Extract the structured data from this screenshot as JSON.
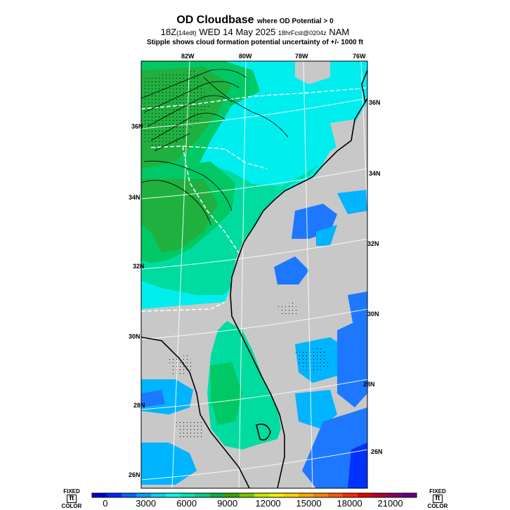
{
  "title": {
    "main": "OD Cloudbase",
    "main_sub": "where OD Potential > 0",
    "run": "18Z",
    "run_local": "(14edt)",
    "date": "WED 14 May 2025",
    "forecast": "18hrFcst@0204z",
    "model": "NAM",
    "stipple_note": "Stipple shows cloud formation potential uncertainty of +/- 1000 ft"
  },
  "map": {
    "lon_labels": [
      "82W",
      "80W",
      "78W",
      "76W"
    ],
    "lat_labels_left": [
      "36N",
      "34N",
      "32N",
      "30N",
      "28N",
      "26N"
    ],
    "lat_labels_right": [
      "36N",
      "34N",
      "32N",
      "30N",
      "28N",
      "26N"
    ],
    "colors": {
      "no_data": "#c8c8c8",
      "cyan": "#00eeee",
      "teal": "#00dca0",
      "green_light": "#00c864",
      "green_mid": "#20b040",
      "green_dark": "#32a028",
      "blue_light": "#00b4ff",
      "blue_mid": "#1e78ff",
      "blue_dark": "#0032ff"
    }
  },
  "colorbar": {
    "left_label": [
      "FIXED",
      "ft",
      "COLOR"
    ],
    "right_label": [
      "FIXED",
      "ft",
      "COLOR"
    ],
    "ticks": [
      "0",
      "3000",
      "6000",
      "9000",
      "12000",
      "15000",
      "18000",
      "21000"
    ],
    "colors": [
      "#0000c8",
      "#0028ff",
      "#0064ff",
      "#00a0ff",
      "#00d2ff",
      "#00ffe6",
      "#00e6b4",
      "#00d27d",
      "#00b43c",
      "#32aa00",
      "#78c800",
      "#c8e600",
      "#f0f000",
      "#ffd200",
      "#ffaa00",
      "#ff8200",
      "#ff5a00",
      "#ff2800",
      "#e60000",
      "#b40032",
      "#8c0064",
      "#64008c"
    ]
  }
}
